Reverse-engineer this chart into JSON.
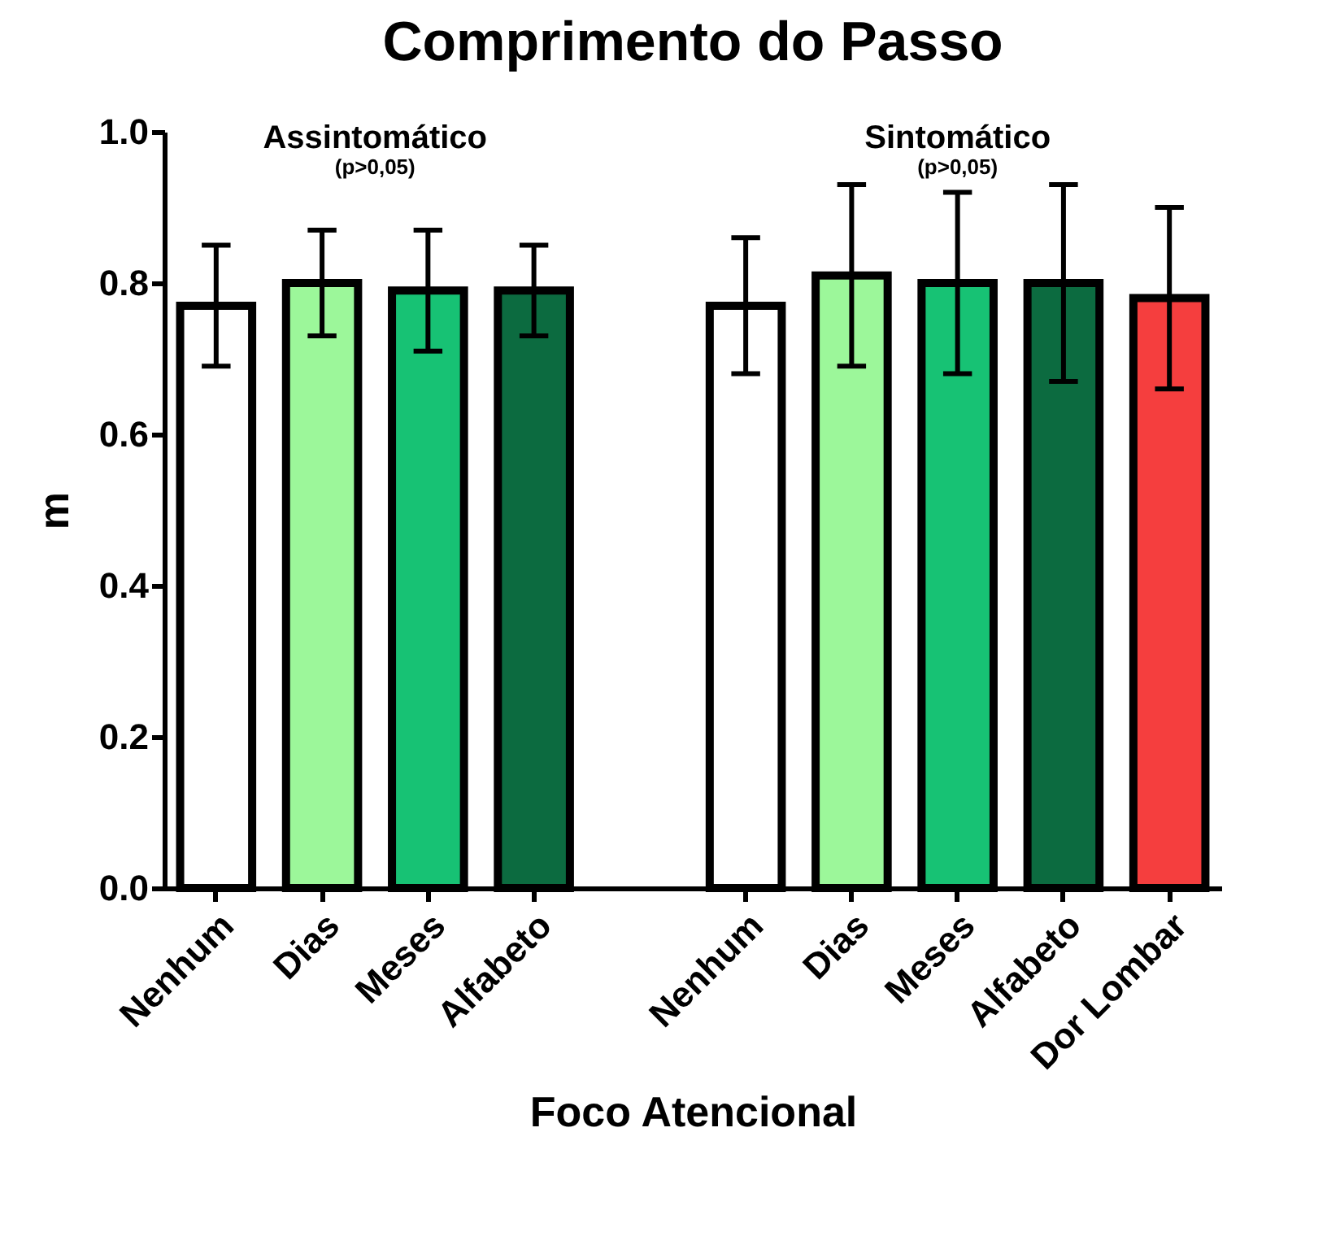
{
  "chart_data": {
    "type": "bar",
    "title": "Comprimento do Passo",
    "xlabel": "Foco Atencional",
    "ylabel": "m",
    "categories": [
      "Nenhum",
      "Dias",
      "Meses",
      "Alfabeto",
      null,
      "Nenhum",
      "Dias",
      "Meses",
      "Alfabeto",
      "Dor Lombar"
    ],
    "values": [
      0.77,
      0.8,
      0.79,
      0.79,
      null,
      0.77,
      0.81,
      0.8,
      0.8,
      0.78
    ],
    "errors": [
      0.08,
      0.07,
      0.08,
      0.06,
      null,
      0.09,
      0.12,
      0.12,
      0.13,
      0.12
    ],
    "colors": [
      "#ffffff",
      "#9cf79a",
      "#17c274",
      "#0c6b40",
      null,
      "#ffffff",
      "#9cf79a",
      "#17c274",
      "#0c6b40",
      "#f53e3e"
    ],
    "ylim": [
      0,
      1.0
    ],
    "yticks": [
      {
        "value": 0,
        "label": "0.0"
      },
      {
        "value": 0.2,
        "label": "0.2"
      },
      {
        "value": 0.4,
        "label": "0.4"
      },
      {
        "value": 0.6,
        "label": "0.6"
      },
      {
        "value": 0.8,
        "label": "0.8"
      },
      {
        "value": 1.0,
        "label": "1.0"
      }
    ],
    "annotations": [
      "Assintomático",
      "(p>0,05)",
      "Sintomático",
      "(p>0,05)"
    ],
    "grid": false
  }
}
